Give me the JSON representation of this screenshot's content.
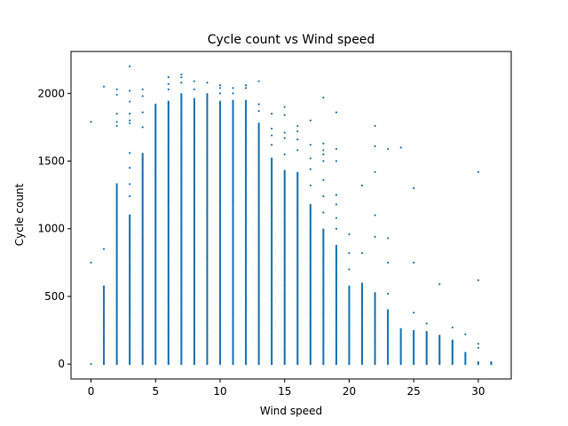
{
  "chart_data": {
    "type": "scatter",
    "title": "Cycle count vs Wind speed",
    "xlabel": "Wind speed",
    "ylabel": "Cycle count",
    "xlim": [
      -1.55,
      32.55
    ],
    "ylim": [
      -110,
      2310
    ],
    "xticks": [
      0,
      5,
      10,
      15,
      20,
      25,
      30
    ],
    "yticks": [
      0,
      500,
      1000,
      1500,
      2000
    ],
    "color": "#1f77b4",
    "grid": false,
    "legend": "none",
    "columns": [
      {
        "x": 0,
        "ymax": 0,
        "extra": [
          750,
          1790
        ]
      },
      {
        "x": 1,
        "ymax": 580,
        "extra": [
          850,
          2050
        ]
      },
      {
        "x": 2,
        "ymax": 1330,
        "extra": [
          1760,
          1790,
          1850,
          1990,
          2030
        ]
      },
      {
        "x": 3,
        "ymax": 1100,
        "extra": [
          1240,
          1330,
          1450,
          1560,
          1780,
          1800,
          1850,
          1940,
          2020,
          2200
        ]
      },
      {
        "x": 4,
        "ymax": 1560,
        "extra": [
          1750,
          1860,
          1980,
          2030
        ]
      },
      {
        "x": 5,
        "ymax": 1920,
        "extra": []
      },
      {
        "x": 6,
        "ymax": 1940,
        "extra": [
          2030,
          2070,
          2120
        ]
      },
      {
        "x": 7,
        "ymax": 2000,
        "extra": [
          2080,
          2120,
          2140
        ]
      },
      {
        "x": 8,
        "ymax": 1960,
        "extra": [
          2030,
          2090
        ]
      },
      {
        "x": 9,
        "ymax": 2000,
        "extra": [
          2080
        ]
      },
      {
        "x": 10,
        "ymax": 1940,
        "extra": [
          2000,
          2040,
          2060
        ]
      },
      {
        "x": 11,
        "ymax": 1950,
        "extra": [
          2000,
          2040
        ]
      },
      {
        "x": 12,
        "ymax": 1950,
        "extra": [
          2040,
          2060
        ]
      },
      {
        "x": 13,
        "ymax": 1780,
        "extra": [
          1870,
          1920,
          2090
        ]
      },
      {
        "x": 14,
        "ymax": 1520,
        "extra": [
          1620,
          1690,
          1740,
          1850
        ]
      },
      {
        "x": 15,
        "ymax": 1430,
        "extra": [
          1550,
          1670,
          1710,
          1840,
          1900
        ]
      },
      {
        "x": 16,
        "ymax": 1420,
        "extra": [
          1580,
          1660,
          1720,
          1760
        ]
      },
      {
        "x": 17,
        "ymax": 1180,
        "extra": [
          1320,
          1440,
          1520,
          1620,
          1800
        ]
      },
      {
        "x": 18,
        "ymax": 1000,
        "extra": [
          1120,
          1240,
          1360,
          1500,
          1550,
          1580,
          1630,
          1970
        ]
      },
      {
        "x": 19,
        "ymax": 880,
        "extra": [
          1000,
          1080,
          1180,
          1250,
          1500,
          1590,
          1860
        ]
      },
      {
        "x": 20,
        "ymax": 580,
        "extra": [
          700,
          820,
          960
        ]
      },
      {
        "x": 21,
        "ymax": 600,
        "extra": [
          820,
          1320
        ]
      },
      {
        "x": 22,
        "ymax": 530,
        "extra": [
          940,
          1100,
          1420,
          1610,
          1760
        ]
      },
      {
        "x": 23,
        "ymax": 400,
        "extra": [
          520,
          750,
          930,
          1590
        ]
      },
      {
        "x": 24,
        "ymax": 260,
        "extra": [
          1600
        ]
      },
      {
        "x": 25,
        "ymax": 250,
        "extra": [
          380,
          750,
          1300
        ]
      },
      {
        "x": 26,
        "ymax": 240,
        "extra": [
          300
        ]
      },
      {
        "x": 27,
        "ymax": 210,
        "extra": [
          590
        ]
      },
      {
        "x": 28,
        "ymax": 180,
        "extra": [
          270
        ]
      },
      {
        "x": 29,
        "ymax": 90,
        "extra": [
          220
        ]
      },
      {
        "x": 30,
        "ymax": 20,
        "extra": [
          120,
          150,
          620,
          1420
        ]
      },
      {
        "x": 31,
        "ymax": 20,
        "extra": []
      }
    ]
  }
}
